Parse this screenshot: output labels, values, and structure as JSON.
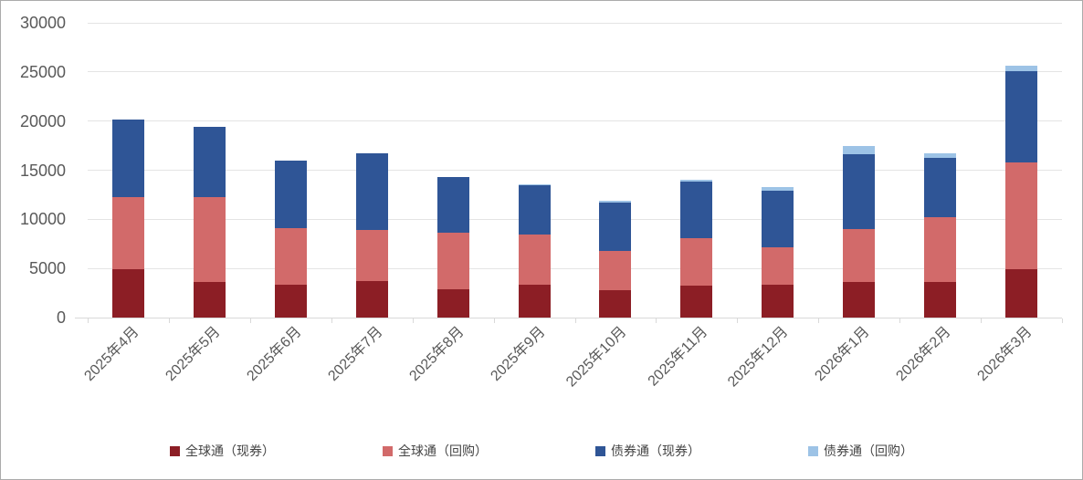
{
  "chart_data": {
    "type": "bar",
    "stacked": true,
    "title": "",
    "xlabel": "",
    "ylabel": "",
    "categories": [
      "2025年4月",
      "2025年5月",
      "2025年6月",
      "2025年7月",
      "2025年8月",
      "2025年9月",
      "2025年10月",
      "2025年11月",
      "2025年12月",
      "2026年1月",
      "2026年2月",
      "2026年3月"
    ],
    "series": [
      {
        "key": "global-connect-cash",
        "name": "全球通（现券）",
        "color": "#8C1E25",
        "values": [
          4900,
          3650,
          3300,
          3700,
          2900,
          3300,
          2800,
          3250,
          3350,
          3600,
          3650,
          4950
        ]
      },
      {
        "key": "global-connect-repo",
        "name": "全球通（回购）",
        "color": "#D26A6A",
        "values": [
          7400,
          8600,
          5800,
          5200,
          5750,
          5150,
          4000,
          4800,
          3800,
          5450,
          6550,
          10850
        ]
      },
      {
        "key": "bond-connect-cash",
        "name": "债券通（现券）",
        "color": "#2F5596",
        "values": [
          7850,
          7150,
          6850,
          7800,
          5700,
          5050,
          4950,
          5800,
          5800,
          7600,
          6100,
          9250
        ]
      },
      {
        "key": "bond-connect-repo",
        "name": "债券通（回购）",
        "color": "#9DC3E6",
        "values": [
          0,
          0,
          0,
          0,
          0,
          100,
          100,
          200,
          300,
          800,
          400,
          550
        ]
      }
    ],
    "ylim": [
      0,
      30000
    ],
    "yticks": [
      0,
      5000,
      10000,
      15000,
      20000,
      25000,
      30000
    ],
    "ytick_labels": [
      "0",
      "5000",
      "10000",
      "15000",
      "20000",
      "25000",
      "30000"
    ],
    "grid": true,
    "legend_position": "bottom",
    "x_label_rotation_deg": -45
  },
  "colors": {
    "axis_text": "#595959",
    "legend_text": "#444444",
    "gridline": "#E4E4E4",
    "axis_line": "#D9D9D9",
    "canvas_border": "#ABABAB",
    "background": "#FFFFFF"
  }
}
